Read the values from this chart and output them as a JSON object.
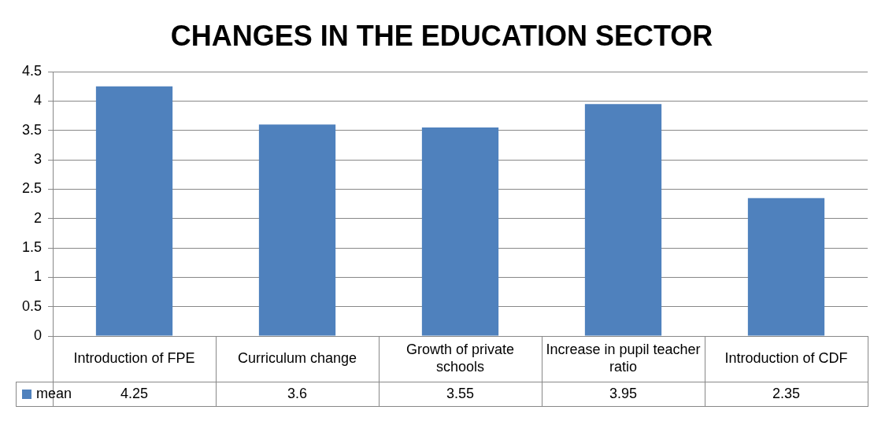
{
  "chart_data": {
    "type": "bar",
    "title": "CHANGES IN THE EDUCATION SECTOR",
    "categories": [
      "Introduction of FPE",
      "Curriculum change",
      "Growth of private schools",
      "Increase in pupil teacher ratio",
      "Introduction of CDF"
    ],
    "series": [
      {
        "name": "mean",
        "color": "#4f81bd",
        "values": [
          4.25,
          3.6,
          3.55,
          3.95,
          2.35
        ]
      }
    ],
    "ylim": [
      0,
      4.5
    ],
    "yticks": [
      0,
      0.5,
      1,
      1.5,
      2,
      2.5,
      3,
      3.5,
      4,
      4.5
    ],
    "grid": "y",
    "legend": "bottom left",
    "data_labels": true
  }
}
